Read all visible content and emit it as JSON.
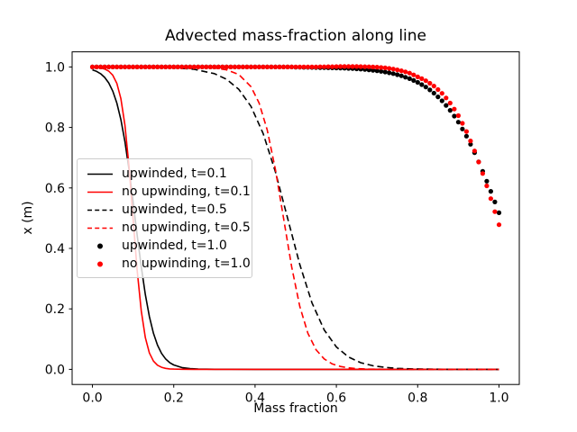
{
  "title": "Advected mass-fraction along line",
  "axes": {
    "xlabel": "Mass fraction",
    "ylabel": "x (m)",
    "xlim": [
      -0.05,
      1.05
    ],
    "ylim": [
      -0.05,
      1.05
    ],
    "x_ticks": [
      0.0,
      0.2,
      0.4,
      0.6,
      0.8,
      1.0
    ],
    "x_tick_labels": [
      "0.0",
      "0.2",
      "0.4",
      "0.6",
      "0.8",
      "1.0"
    ],
    "y_ticks": [
      0.0,
      0.2,
      0.4,
      0.6,
      0.8,
      1.0
    ],
    "y_tick_labels": [
      "0.0",
      "0.2",
      "0.4",
      "0.6",
      "0.8",
      "1.0"
    ],
    "grid": false
  },
  "colors": {
    "black": "#000000",
    "red": "#ff0000",
    "spine": "#000000",
    "legend_border": "#cccccc",
    "background": "#ffffff"
  },
  "chart_data": {
    "type": "line",
    "title": "Advected mass-fraction along line",
    "xlabel": "Mass fraction",
    "ylabel": "x (m)",
    "xlim": [
      -0.05,
      1.05
    ],
    "ylim": [
      -0.05,
      1.05
    ],
    "grid": false,
    "legend_position": "center-left",
    "series": [
      {
        "name": "upwinded, t=0.1",
        "color": "black",
        "style": "solid",
        "x": [
          0,
          0.01,
          0.02,
          0.03,
          0.04,
          0.05,
          0.06,
          0.07,
          0.08,
          0.09,
          0.1,
          0.11,
          0.12,
          0.13,
          0.14,
          0.15,
          0.16,
          0.17,
          0.18,
          0.19,
          0.2,
          0.22,
          0.24,
          0.26,
          0.3,
          0.4,
          0.6,
          0.8,
          1.0
        ],
        "y": [
          0.9906,
          0.9853,
          0.9777,
          0.9656,
          0.9472,
          0.9198,
          0.8808,
          0.8257,
          0.7525,
          0.6608,
          0.5553,
          0.4447,
          0.3392,
          0.2475,
          0.1743,
          0.1192,
          0.0802,
          0.0528,
          0.0344,
          0.0223,
          0.0146,
          0.006,
          0.0024,
          0.001,
          0.0002,
          0,
          0,
          0,
          0
        ]
      },
      {
        "name": "no upwinding, t=0.1",
        "color": "red",
        "style": "solid",
        "x": [
          0,
          0.01,
          0.02,
          0.03,
          0.04,
          0.05,
          0.06,
          0.07,
          0.08,
          0.09,
          0.1,
          0.11,
          0.12,
          0.13,
          0.14,
          0.15,
          0.16,
          0.17,
          0.18,
          0.19,
          0.2,
          0.22,
          0.25,
          0.4,
          0.6,
          0.8,
          1.0
        ],
        "y": [
          0.9992,
          0.9984,
          0.9967,
          0.9933,
          0.9864,
          0.9726,
          0.9457,
          0.8949,
          0.8067,
          0.6713,
          0.5,
          0.3287,
          0.1933,
          0.1051,
          0.0543,
          0.0274,
          0.0136,
          0.0067,
          0.0033,
          0.0016,
          0.0008,
          0.0002,
          0,
          0,
          0,
          0,
          0
        ]
      },
      {
        "name": "upwinded, t=0.5",
        "color": "black",
        "style": "dashed",
        "x": [
          0,
          0.1,
          0.2,
          0.25,
          0.3,
          0.33,
          0.36,
          0.39,
          0.42,
          0.45,
          0.48,
          0.51,
          0.54,
          0.57,
          0.6,
          0.63,
          0.66,
          0.69,
          0.72,
          0.75,
          0.78,
          0.82,
          0.86,
          0.9,
          1.0
        ],
        "y": [
          1.0,
          0.9997,
          0.9973,
          0.9923,
          0.9779,
          0.9592,
          0.926,
          0.8695,
          0.7797,
          0.6529,
          0.5,
          0.3471,
          0.2203,
          0.1305,
          0.074,
          0.0408,
          0.0221,
          0.0119,
          0.0064,
          0.0033,
          0.0018,
          0.0008,
          0.0004,
          0.0002,
          0
        ]
      },
      {
        "name": "no upwinding, t=0.5",
        "color": "red",
        "style": "dashed",
        "x": [
          0,
          0.2,
          0.25,
          0.3,
          0.33,
          0.36,
          0.39,
          0.41,
          0.43,
          0.45,
          0.47,
          0.49,
          0.51,
          0.53,
          0.55,
          0.57,
          0.59,
          0.61,
          0.63,
          0.65,
          0.68,
          0.72,
          0.8,
          0.9,
          1.0
        ],
        "y": [
          1.0,
          0.9999,
          0.9993,
          0.9966,
          0.9906,
          0.975,
          0.9349,
          0.8808,
          0.7917,
          0.6608,
          0.5,
          0.3392,
          0.2083,
          0.1192,
          0.0651,
          0.0344,
          0.018,
          0.0094,
          0.005,
          0.0025,
          0.0009,
          0.0002,
          0,
          0,
          0
        ]
      },
      {
        "name": "upwinded, t=1.0",
        "color": "black",
        "style": "dots",
        "x": [
          0,
          0.01,
          0.02,
          0.03,
          0.04,
          0.05,
          0.06,
          0.07,
          0.08,
          0.09,
          0.1,
          0.11,
          0.12,
          0.13,
          0.14,
          0.15,
          0.16,
          0.17,
          0.18,
          0.19,
          0.2,
          0.21,
          0.22,
          0.23,
          0.24,
          0.25,
          0.26,
          0.27,
          0.28,
          0.29,
          0.3,
          0.31,
          0.32,
          0.33,
          0.34,
          0.35,
          0.36,
          0.37,
          0.38,
          0.39,
          0.4,
          0.41,
          0.42,
          0.43,
          0.44,
          0.45,
          0.46,
          0.47,
          0.48,
          0.49,
          0.5,
          0.51,
          0.52,
          0.53,
          0.54,
          0.55,
          0.56,
          0.57,
          0.58,
          0.59,
          0.6,
          0.61,
          0.62,
          0.63,
          0.64,
          0.65,
          0.66,
          0.67,
          0.68,
          0.69,
          0.7,
          0.71,
          0.72,
          0.73,
          0.74,
          0.75,
          0.76,
          0.77,
          0.78,
          0.79,
          0.8,
          0.81,
          0.82,
          0.83,
          0.84,
          0.85,
          0.86,
          0.87,
          0.88,
          0.89,
          0.9,
          0.91,
          0.92,
          0.93,
          0.94,
          0.95,
          0.96,
          0.97,
          0.98,
          0.99,
          1
        ],
        "y": [
          1,
          1,
          1,
          1,
          1,
          1,
          1,
          1,
          1,
          1,
          1,
          1,
          1,
          1,
          1,
          1,
          1,
          1,
          1,
          1,
          1,
          1,
          1,
          1,
          1,
          1,
          1,
          1,
          1,
          1,
          1,
          1,
          1,
          1,
          1,
          1,
          1,
          1,
          1,
          1,
          1,
          1,
          1,
          1,
          1,
          1,
          1,
          1,
          1,
          1,
          0.9993,
          0.9991,
          0.9989,
          0.9987,
          0.9985,
          0.9983,
          0.998,
          0.9977,
          0.9974,
          0.9971,
          0.9967,
          0.9963,
          0.9959,
          0.9953,
          0.9946,
          0.9938,
          0.9929,
          0.9917,
          0.9904,
          0.989,
          0.9874,
          0.9855,
          0.9834,
          0.9808,
          0.9779,
          0.9745,
          0.9707,
          0.9662,
          0.9612,
          0.9555,
          0.9492,
          0.9417,
          0.9336,
          0.924,
          0.9135,
          0.9012,
          0.8882,
          0.8729,
          0.8564,
          0.8376,
          0.8176,
          0.795,
          0.771,
          0.7443,
          0.7167,
          0.6863,
          0.6552,
          0.6222,
          0.5886,
          0.5535,
          0.518
        ]
      },
      {
        "name": "no upwinding, t=1.0",
        "color": "red",
        "style": "dots",
        "x": [
          0,
          0.01,
          0.02,
          0.03,
          0.04,
          0.05,
          0.06,
          0.07,
          0.08,
          0.09,
          0.1,
          0.11,
          0.12,
          0.13,
          0.14,
          0.15,
          0.16,
          0.17,
          0.18,
          0.19,
          0.2,
          0.21,
          0.22,
          0.23,
          0.24,
          0.25,
          0.26,
          0.27,
          0.28,
          0.29,
          0.3,
          0.31,
          0.32,
          0.33,
          0.34,
          0.35,
          0.36,
          0.37,
          0.38,
          0.39,
          0.4,
          0.41,
          0.42,
          0.43,
          0.44,
          0.45,
          0.46,
          0.47,
          0.48,
          0.49,
          0.5,
          0.51,
          0.52,
          0.53,
          0.54,
          0.55,
          0.56,
          0.57,
          0.58,
          0.59,
          0.6,
          0.61,
          0.62,
          0.63,
          0.64,
          0.65,
          0.66,
          0.67,
          0.68,
          0.69,
          0.7,
          0.71,
          0.72,
          0.73,
          0.74,
          0.75,
          0.76,
          0.77,
          0.78,
          0.79,
          0.8,
          0.81,
          0.82,
          0.83,
          0.84,
          0.85,
          0.86,
          0.87,
          0.88,
          0.89,
          0.9,
          0.91,
          0.92,
          0.93,
          0.94,
          0.95,
          0.96,
          0.97,
          0.98,
          0.99,
          1
        ],
        "y": [
          1,
          1,
          1,
          1,
          1,
          1,
          1,
          1,
          1,
          1,
          1,
          1,
          1,
          1,
          1,
          1,
          1,
          1,
          1,
          1,
          1,
          1,
          1,
          1,
          1,
          1,
          1,
          1,
          1,
          1,
          1,
          1,
          1,
          1,
          1,
          1,
          1,
          1,
          1,
          1,
          1,
          1,
          1,
          1,
          1,
          1,
          1,
          1,
          1,
          1,
          1,
          1,
          1,
          1,
          1,
          1,
          1.0005,
          1.0007,
          1.0009,
          1.001,
          1.0012,
          1.0014,
          1.0015,
          1.0016,
          1.0016,
          1.0015,
          1.0013,
          1.001,
          1.0006,
          1.0,
          0.9993,
          0.9982,
          0.9969,
          0.9952,
          0.9931,
          0.9906,
          0.9876,
          0.984,
          0.9797,
          0.9739,
          0.9674,
          0.9614,
          0.9545,
          0.946,
          0.9368,
          0.9253,
          0.9128,
          0.8977,
          0.8808,
          0.8607,
          0.8391,
          0.8137,
          0.7865,
          0.7553,
          0.7223,
          0.6858,
          0.6475,
          0.6068,
          0.5646,
          0.5215,
          0.4783
        ]
      }
    ]
  }
}
